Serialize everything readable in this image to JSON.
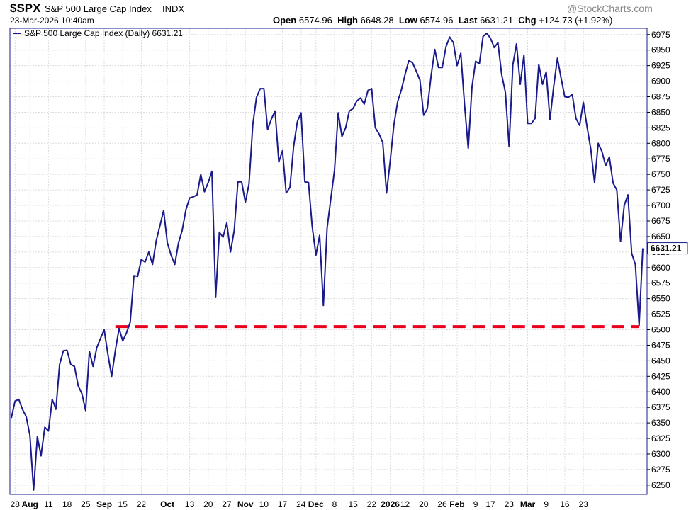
{
  "header": {
    "symbol": "$SPX",
    "name": "S&P 500 Large Cap Index",
    "exchange": "INDX",
    "datetime": "23-Mar-2026 10:40am",
    "open_label": "Open",
    "open": "6574.96",
    "high_label": "High",
    "high": "6648.28",
    "low_label": "Low",
    "low": "6574.96",
    "last_label": "Last",
    "last": "6631.21",
    "chg_label": "Chg",
    "chg": "+124.73 (+1.92%)",
    "brand": "@StockCharts.com"
  },
  "chart_data": {
    "type": "line",
    "legend": "S&P 500 Large Cap Index (Daily) 6631.21",
    "last_value_label": "6631.21",
    "ylim": [
      6235,
      6985
    ],
    "yticks": [
      6250,
      6275,
      6300,
      6325,
      6350,
      6375,
      6400,
      6425,
      6450,
      6475,
      6500,
      6525,
      6550,
      6575,
      6600,
      6625,
      6650,
      6675,
      6700,
      6725,
      6750,
      6775,
      6800,
      6825,
      6850,
      6875,
      6900,
      6925,
      6950,
      6975
    ],
    "xticks": [
      {
        "i": 1,
        "label": "28"
      },
      {
        "i": 5,
        "label": "Aug"
      },
      {
        "i": 10,
        "label": "11"
      },
      {
        "i": 15,
        "label": "18"
      },
      {
        "i": 20,
        "label": "25"
      },
      {
        "i": 25,
        "label": "Sep"
      },
      {
        "i": 30,
        "label": "15"
      },
      {
        "i": 35,
        "label": "22"
      },
      {
        "i": 42,
        "label": "Oct"
      },
      {
        "i": 48,
        "label": "13"
      },
      {
        "i": 53,
        "label": "20"
      },
      {
        "i": 58,
        "label": "27"
      },
      {
        "i": 63,
        "label": "Nov"
      },
      {
        "i": 68,
        "label": "10"
      },
      {
        "i": 73,
        "label": "17"
      },
      {
        "i": 78,
        "label": "24"
      },
      {
        "i": 82,
        "label": "Dec"
      },
      {
        "i": 87,
        "label": "8"
      },
      {
        "i": 92,
        "label": "15"
      },
      {
        "i": 97,
        "label": "22"
      },
      {
        "i": 102,
        "label": "2026"
      },
      {
        "i": 106,
        "label": "12"
      },
      {
        "i": 111,
        "label": "20"
      },
      {
        "i": 116,
        "label": "26"
      },
      {
        "i": 120,
        "label": "Feb"
      },
      {
        "i": 125,
        "label": "9"
      },
      {
        "i": 129,
        "label": "17"
      },
      {
        "i": 134,
        "label": "23"
      },
      {
        "i": 139,
        "label": "Mar"
      },
      {
        "i": 144,
        "label": "9"
      },
      {
        "i": 149,
        "label": "16"
      },
      {
        "i": 154,
        "label": "23"
      }
    ],
    "values": [
      6358,
      6385,
      6388,
      6372,
      6360,
      6330,
      6242,
      6328,
      6297,
      6343,
      6337,
      6388,
      6372,
      6444,
      6466,
      6467,
      6444,
      6441,
      6410,
      6397,
      6370,
      6465,
      6441,
      6471,
      6486,
      6500,
      6460,
      6425,
      6467,
      6502,
      6482,
      6495,
      6512,
      6587,
      6586,
      6613,
      6609,
      6625,
      6605,
      6643,
      6667,
      6692,
      6640,
      6620,
      6605,
      6640,
      6660,
      6693,
      6712,
      6714,
      6717,
      6750,
      6722,
      6737,
      6755,
      6552,
      6657,
      6649,
      6672,
      6625,
      6660,
      6738,
      6738,
      6705,
      6735,
      6830,
      6874,
      6888,
      6888,
      6822,
      6839,
      6852,
      6770,
      6788,
      6720,
      6729,
      6795,
      6835,
      6849,
      6738,
      6737,
      6666,
      6620,
      6652,
      6539,
      6663,
      6710,
      6757,
      6849,
      6811,
      6825,
      6852,
      6856,
      6868,
      6873,
      6863,
      6885,
      6888,
      6825,
      6815,
      6801,
      6720,
      6772,
      6830,
      6867,
      6886,
      6911,
      6933,
      6930,
      6916,
      6902,
      6845,
      6856,
      6909,
      6951,
      6922,
      6922,
      6955,
      6971,
      6962,
      6925,
      6945,
      6863,
      6792,
      6890,
      6932,
      6928,
      6972,
      6977,
      6969,
      6954,
      6962,
      6911,
      6882,
      6795,
      6926,
      6960,
      6895,
      6942,
      6832,
      6832,
      6840,
      6927,
      6895,
      6915,
      6838,
      6891,
      6937,
      6905,
      6875,
      6874,
      6879,
      6840,
      6829,
      6866,
      6826,
      6791,
      6737,
      6800,
      6787,
      6764,
      6778,
      6736,
      6725,
      6642,
      6700,
      6717,
      6623,
      6605,
      6507,
      6631
    ],
    "support_level": 6505,
    "support_start_index": 28,
    "colors": {
      "line": "#1a1a8c",
      "support": "#e8001c",
      "grid": "#dcdcdc",
      "frame": "#1a1a8c",
      "last_box_border": "#1a1a8c"
    }
  }
}
